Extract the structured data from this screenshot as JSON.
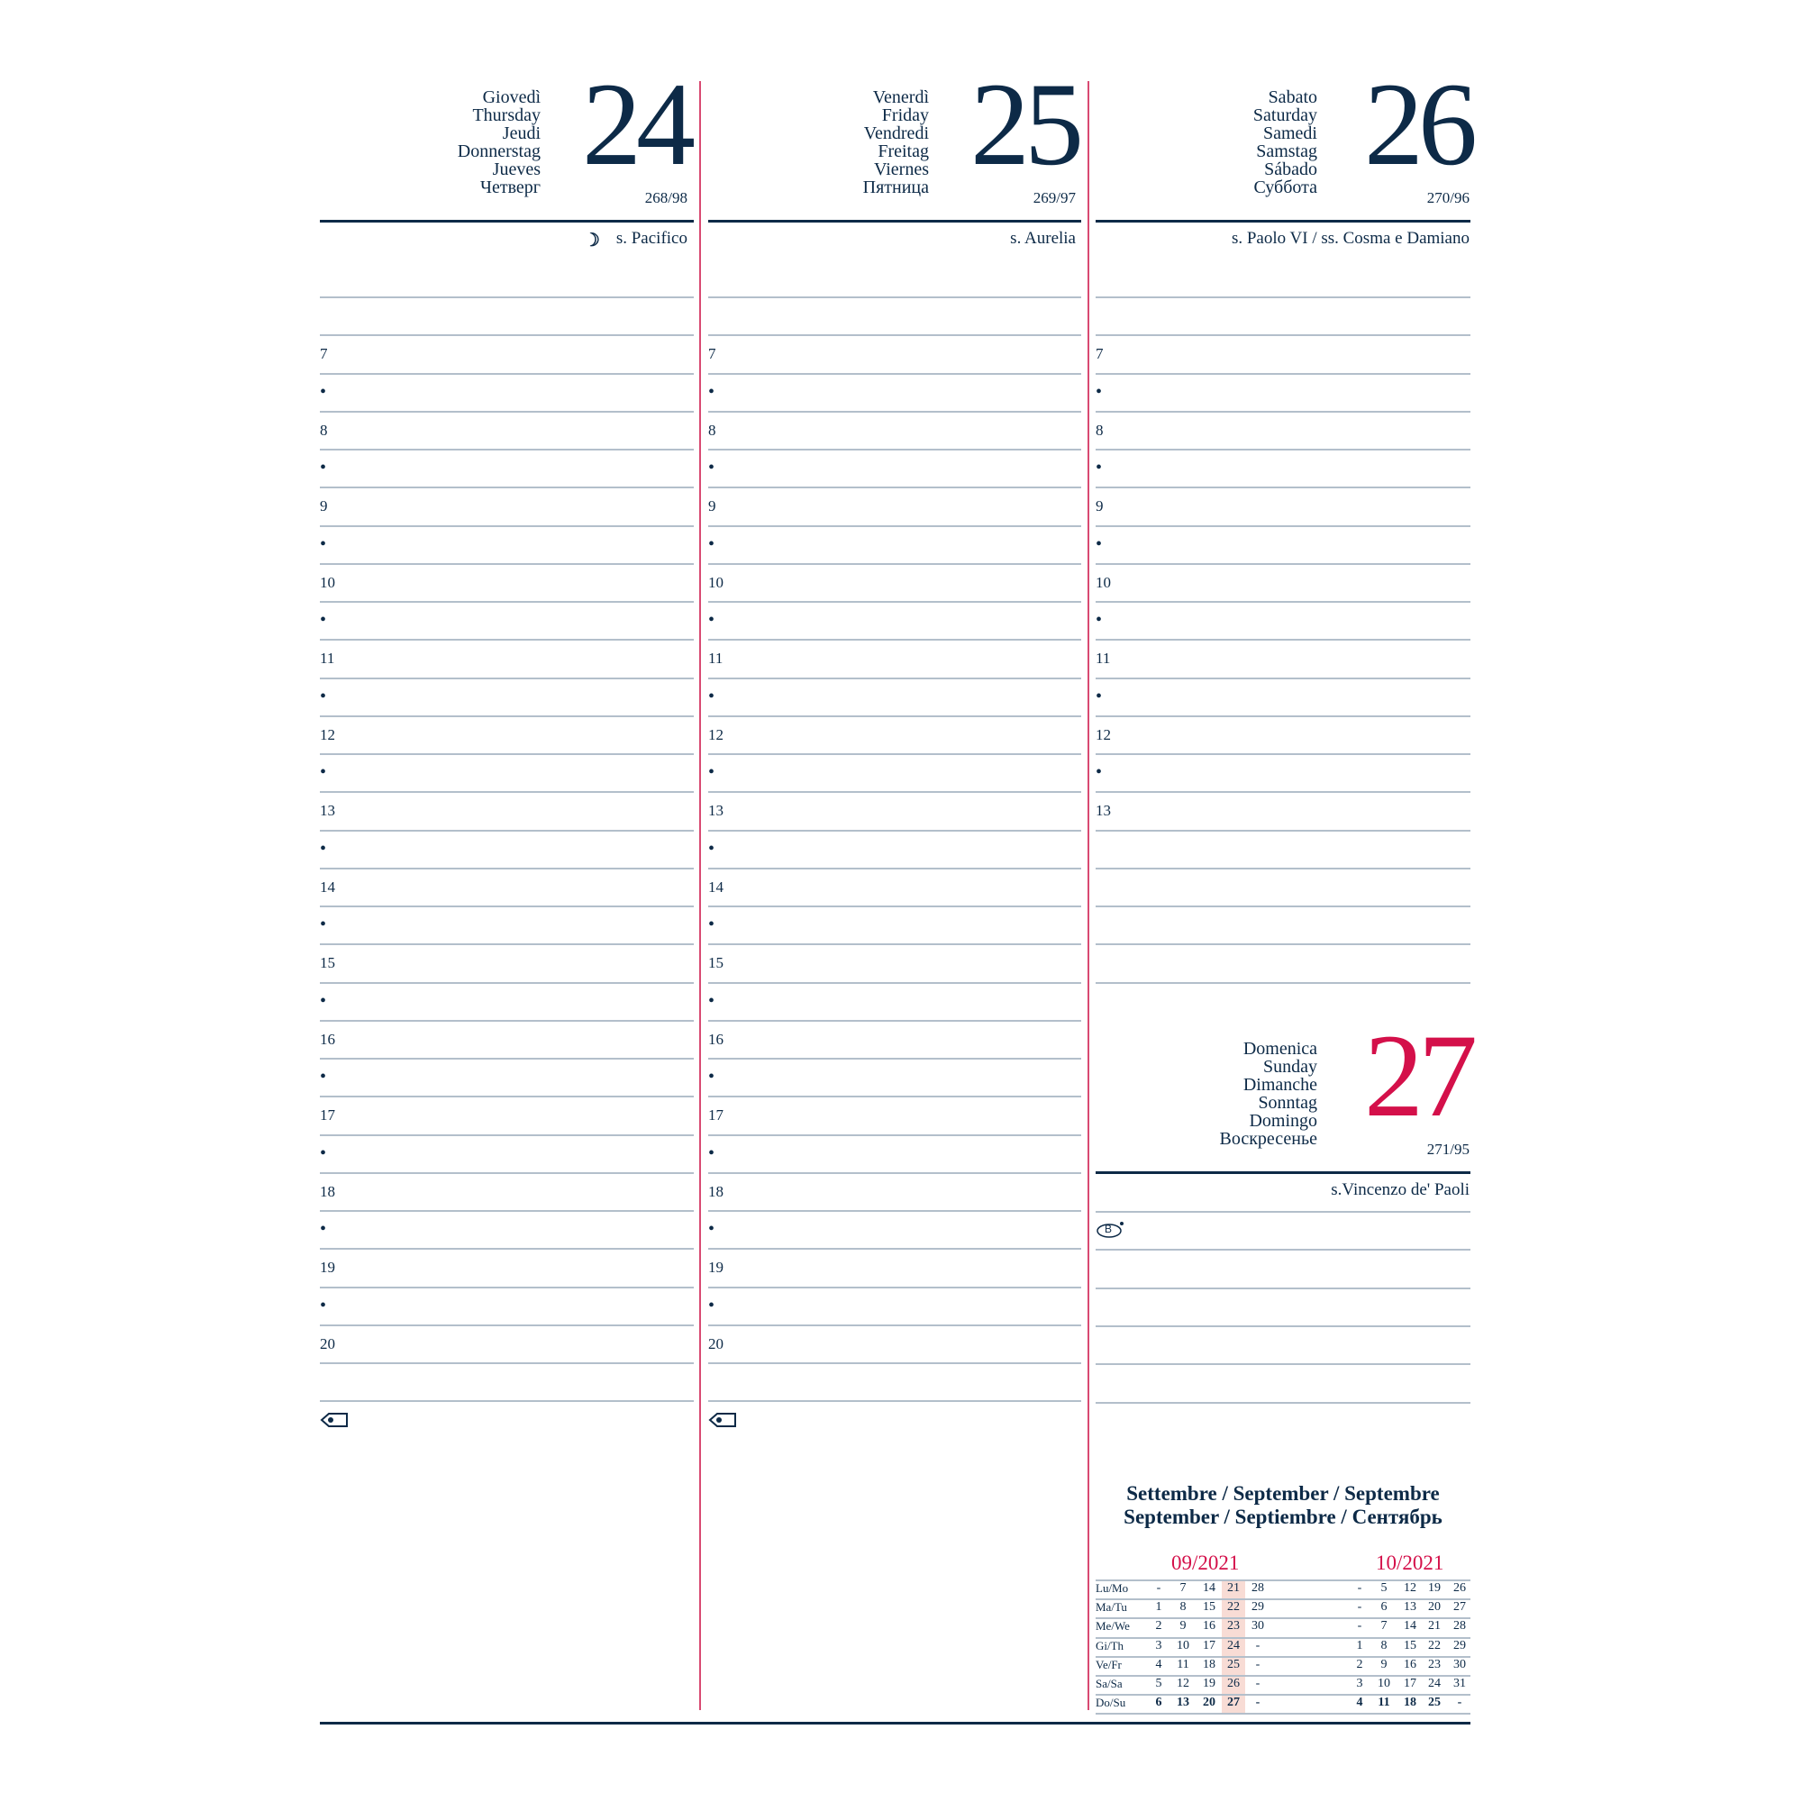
{
  "colors": {
    "ink": "#0d2a47",
    "accent": "#d4104a",
    "rule": "#b3bfcb",
    "highlight": "#f8dcd5"
  },
  "days": [
    {
      "names": [
        "Giovedì",
        "Thursday",
        "Jeudi",
        "Donnerstag",
        "Jueves",
        "Четверг"
      ],
      "number": "24",
      "day_of_year": "268/98",
      "saint": "s. Pacifico",
      "moon_icon": "waning-moon-icon",
      "hours": [
        "",
        "7",
        "•",
        "8",
        "•",
        "9",
        "•",
        "10",
        "•",
        "11",
        "•",
        "12",
        "•",
        "13",
        "•",
        "14",
        "•",
        "15",
        "•",
        "16",
        "•",
        "17",
        "•",
        "18",
        "•",
        "19",
        "•",
        "20",
        ""
      ]
    },
    {
      "names": [
        "Venerdì",
        "Friday",
        "Vendredi",
        "Freitag",
        "Viernes",
        "Пятница"
      ],
      "number": "25",
      "day_of_year": "269/97",
      "saint": "s. Aurelia",
      "hours": [
        "",
        "7",
        "•",
        "8",
        "•",
        "9",
        "•",
        "10",
        "•",
        "11",
        "•",
        "12",
        "•",
        "13",
        "•",
        "14",
        "•",
        "15",
        "•",
        "16",
        "•",
        "17",
        "•",
        "18",
        "•",
        "19",
        "•",
        "20",
        ""
      ]
    },
    {
      "names": [
        "Sabato",
        "Saturday",
        "Samedi",
        "Samstag",
        "Sábado",
        "Суббота"
      ],
      "number": "26",
      "day_of_year": "270/96",
      "saint": "s. Paolo VI / ss. Cosma e Damiano",
      "hours": [
        "",
        "7",
        "•",
        "8",
        "•",
        "9",
        "•",
        "10",
        "•",
        "11",
        "•",
        "12",
        "•",
        "13",
        "",
        "",
        "",
        "",
        ""
      ]
    }
  ],
  "sunday": {
    "names": [
      "Domenica",
      "Sunday",
      "Dimanche",
      "Sonntag",
      "Domingo",
      "Воскресенье"
    ],
    "number": "27",
    "day_of_year": "271/95",
    "saint": "s.Vincenzo de' Paoli",
    "badge": "B"
  },
  "mini_calendar": {
    "title_line1": "Settembre / September / Septembre",
    "title_line2": "September / Septiembre / Сентябрь",
    "weekdays": [
      "Lu/Mo",
      "Ma/Tu",
      "Me/We",
      "Gi/Th",
      "Ve/Fr",
      "Sa/Sa",
      "Do/Su"
    ],
    "months": [
      {
        "label": "09/2021",
        "highlight_column": 3,
        "rows": [
          [
            "-",
            "7",
            "14",
            "21",
            "28"
          ],
          [
            "1",
            "8",
            "15",
            "22",
            "29"
          ],
          [
            "2",
            "9",
            "16",
            "23",
            "30"
          ],
          [
            "3",
            "10",
            "17",
            "24",
            "-"
          ],
          [
            "4",
            "11",
            "18",
            "25",
            "-"
          ],
          [
            "5",
            "12",
            "19",
            "26",
            "-"
          ],
          [
            "6",
            "13",
            "20",
            "27",
            "-"
          ]
        ]
      },
      {
        "label": "10/2021",
        "rows": [
          [
            "-",
            "5",
            "12",
            "19",
            "26"
          ],
          [
            "-",
            "6",
            "13",
            "20",
            "27"
          ],
          [
            "-",
            "7",
            "14",
            "21",
            "28"
          ],
          [
            "1",
            "8",
            "15",
            "22",
            "29"
          ],
          [
            "2",
            "9",
            "16",
            "23",
            "30"
          ],
          [
            "3",
            "10",
            "17",
            "24",
            "31"
          ],
          [
            "4",
            "11",
            "18",
            "25",
            "-"
          ]
        ]
      }
    ]
  }
}
